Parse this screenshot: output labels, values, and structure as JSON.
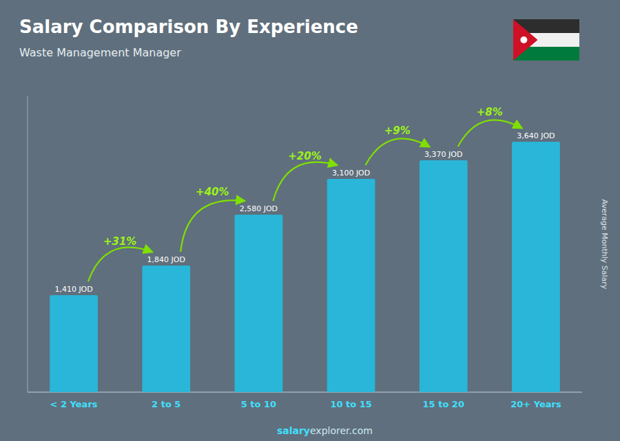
{
  "chart_data": {
    "type": "bar",
    "title": "Salary Comparison By Experience",
    "subtitle": "Waste Management Manager",
    "y_label": "Average Monthly Salary",
    "categories": [
      "< 2 Years",
      "2 to 5",
      "5 to 10",
      "10 to 15",
      "15 to 20",
      "20+ Years"
    ],
    "values": [
      1410,
      1840,
      2580,
      3100,
      3370,
      3640
    ],
    "value_labels": [
      "1,410 JOD",
      "1,840 JOD",
      "2,580 JOD",
      "3,100 JOD",
      "3,370 JOD",
      "3,640 JOD"
    ],
    "data_labels": true,
    "annotations": [
      "+31%",
      "+40%",
      "+20%",
      "+9%",
      "+8%"
    ],
    "footer": [
      "salary",
      "explorer.com"
    ],
    "color": "#29b6d8",
    "ylim": [
      0,
      4300
    ],
    "grid": false,
    "tick_labels": "x"
  }
}
